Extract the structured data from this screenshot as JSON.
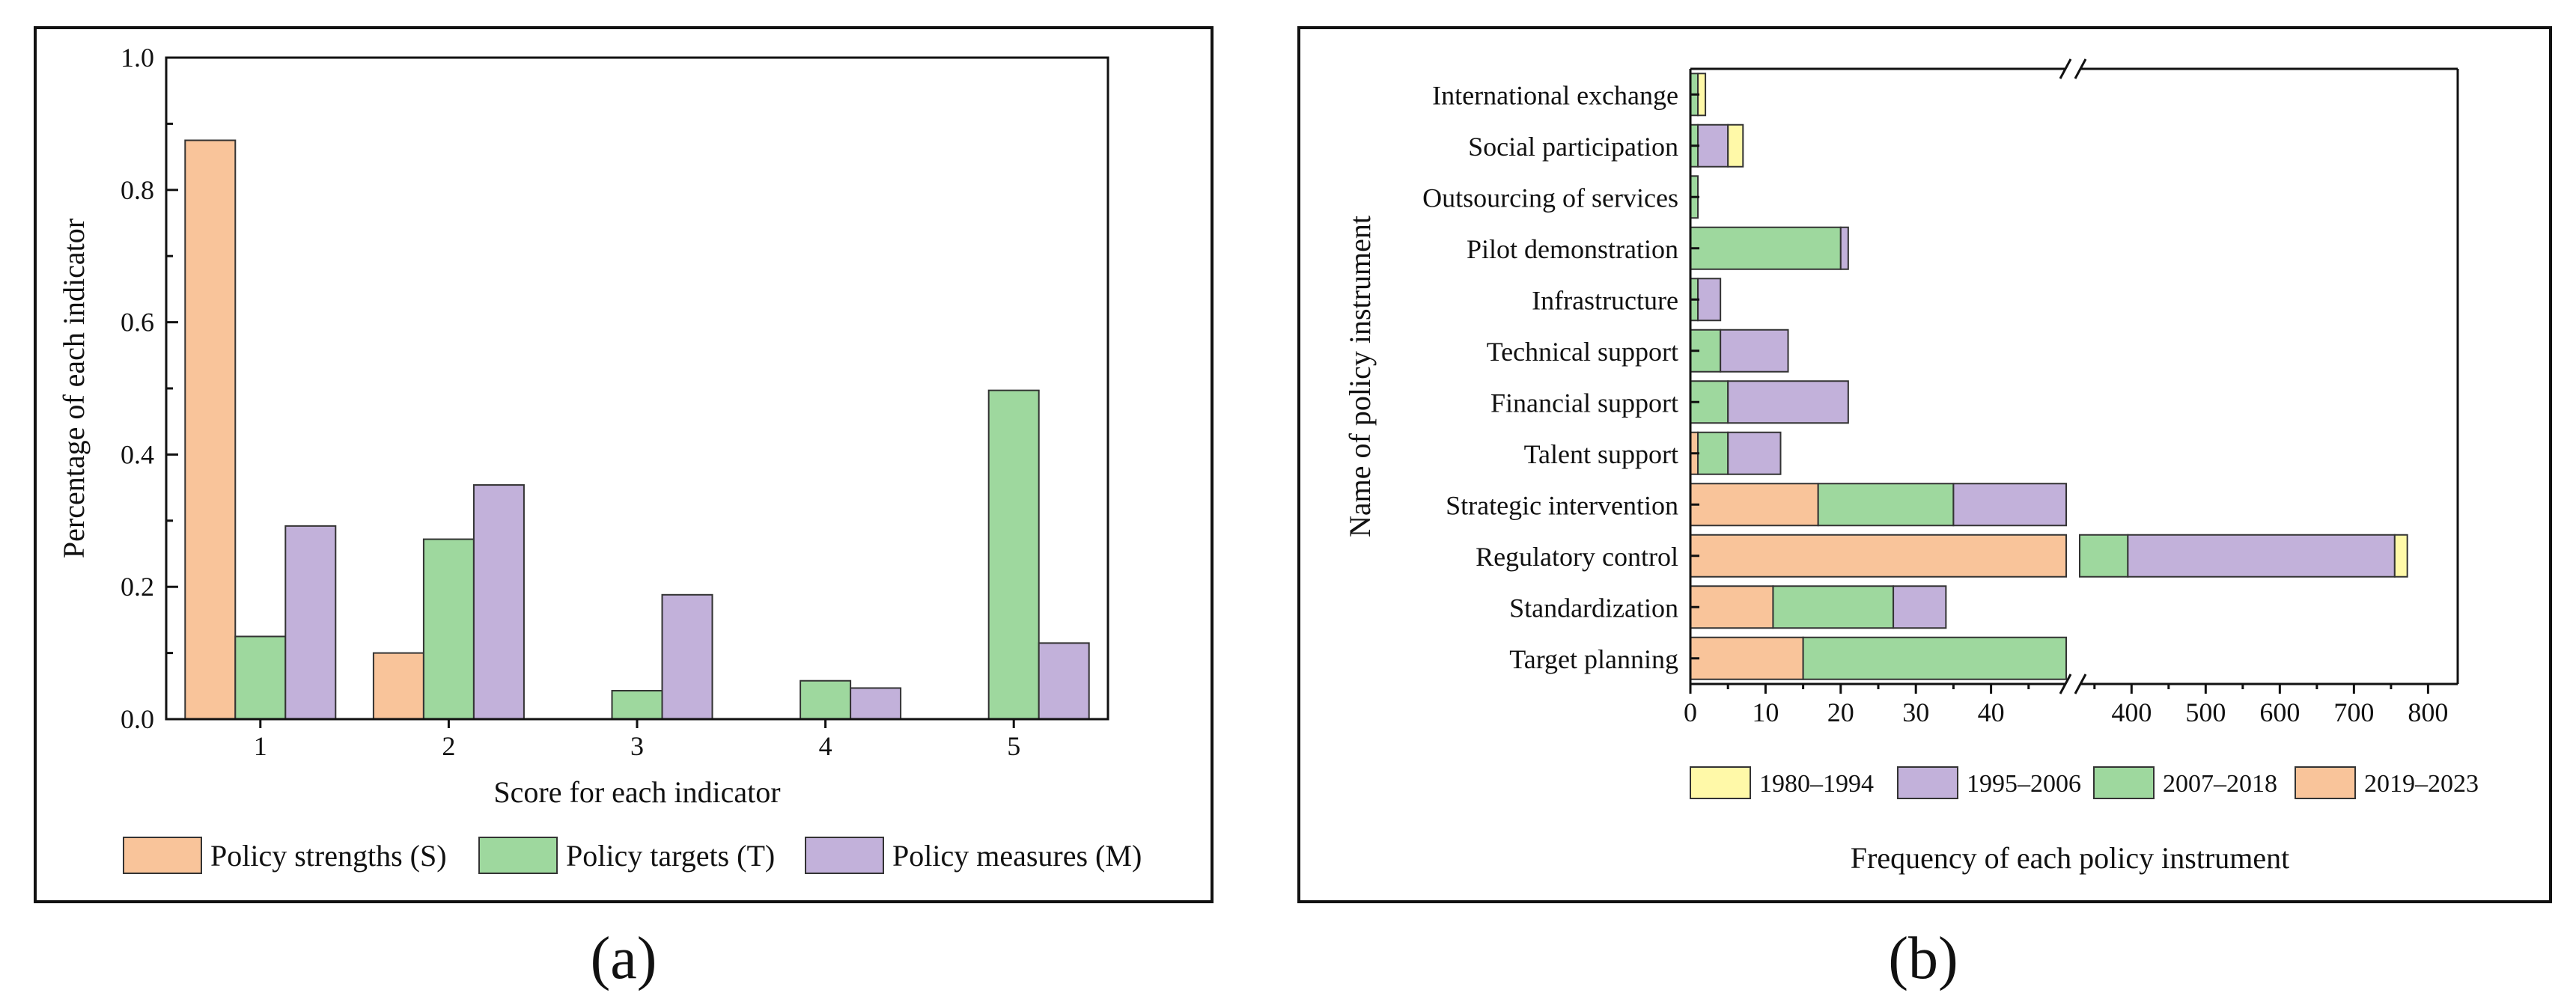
{
  "colors": {
    "strength": "#F9C49A",
    "target": "#9ED89E",
    "measure": "#C2B1DA",
    "y1980": "#FFF9A8",
    "y1995": "#C2B1DA",
    "y2007": "#9ED89E",
    "y2019": "#F9C49A",
    "frame": "#111111"
  },
  "panel_a_caption": "(a)",
  "panel_b_caption": "(b)",
  "chart_data": [
    {
      "type": "bar",
      "xlabel": "Score for each indicator",
      "ylabel": "Percentage of each indicator",
      "categories": [
        "1",
        "2",
        "3",
        "4",
        "5"
      ],
      "ylim": [
        0,
        1.0
      ],
      "yticks": [
        "0.0",
        "0.2",
        "0.4",
        "0.6",
        "0.8",
        "1.0"
      ],
      "series": [
        {
          "name": "Policy strengths (S)",
          "values": [
            0.875,
            0.1,
            0,
            0,
            0
          ]
        },
        {
          "name": "Policy targets (T)",
          "values": [
            0.125,
            0.272,
            0.043,
            0.058,
            0.497
          ]
        },
        {
          "name": "Policy measures (M)",
          "values": [
            0.292,
            0.354,
            0.188,
            0.047,
            0.115
          ]
        }
      ],
      "legend": "bottom"
    },
    {
      "type": "bar",
      "orientation": "horizontal",
      "stacked": true,
      "xlabel": "Frequency of each policy instrument",
      "ylabel": "Name of policy instrument",
      "categories": [
        "International exchange",
        "Social participation",
        "Outsourcing of services",
        "Pilot demonstration",
        "Infrastructure",
        "Technical support",
        "Financial support",
        "Talent support",
        "Strategic intervention",
        "Regulatory control",
        "Standardization",
        "Target planning"
      ],
      "xlim_low": [
        0,
        50
      ],
      "xlim_high": [
        330,
        840
      ],
      "xticks_low": [
        "0",
        "10",
        "20",
        "30",
        "40"
      ],
      "xticks_high": [
        "400",
        "500",
        "600",
        "700",
        "800"
      ],
      "series": [
        {
          "name": "2019–2023",
          "values": [
            0,
            0,
            0,
            0,
            0,
            0,
            0,
            1,
            17,
            300,
            11,
            15
          ]
        },
        {
          "name": "2007–2018",
          "values": [
            1,
            1,
            1,
            20,
            1,
            4,
            5,
            4,
            18,
            95,
            16,
            165
          ]
        },
        {
          "name": "1995–2006",
          "values": [
            0,
            4,
            0,
            1,
            3,
            9,
            16,
            7,
            85,
            360,
            7,
            0
          ]
        },
        {
          "name": "1980–1994",
          "values": [
            1,
            2,
            0,
            0,
            0,
            0,
            0,
            0,
            0,
            17,
            0,
            0
          ]
        }
      ],
      "legend_order": [
        "1980–1994",
        "1995–2006",
        "2007–2018",
        "2019–2023"
      ],
      "legend": "bottom"
    }
  ]
}
